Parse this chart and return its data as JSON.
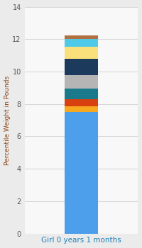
{
  "categories": [
    "Girl 0 years 1 months"
  ],
  "segments": [
    {
      "value": 7.5,
      "color": "#4D9FEC"
    },
    {
      "value": 0.35,
      "color": "#F5A820"
    },
    {
      "value": 0.45,
      "color": "#D94010"
    },
    {
      "value": 0.65,
      "color": "#1A7A8C"
    },
    {
      "value": 0.85,
      "color": "#B5B5B5"
    },
    {
      "value": 1.0,
      "color": "#1C3A5C"
    },
    {
      "value": 0.75,
      "color": "#FAE07A"
    },
    {
      "value": 0.45,
      "color": "#4EC9E8"
    },
    {
      "value": 0.25,
      "color": "#B07040"
    }
  ],
  "ylim": [
    0,
    14
  ],
  "yticks": [
    0,
    2,
    4,
    6,
    8,
    10,
    12,
    14
  ],
  "ylabel": "Percentile Weight in Pounds",
  "background_color": "#EBEBEB",
  "plot_bg_color": "#F8F8F8",
  "grid_color": "#D8D8D8",
  "xlabel_color": "#2080B8",
  "ylabel_color": "#8B4010",
  "tick_color": "#555555",
  "bar_width": 0.3
}
